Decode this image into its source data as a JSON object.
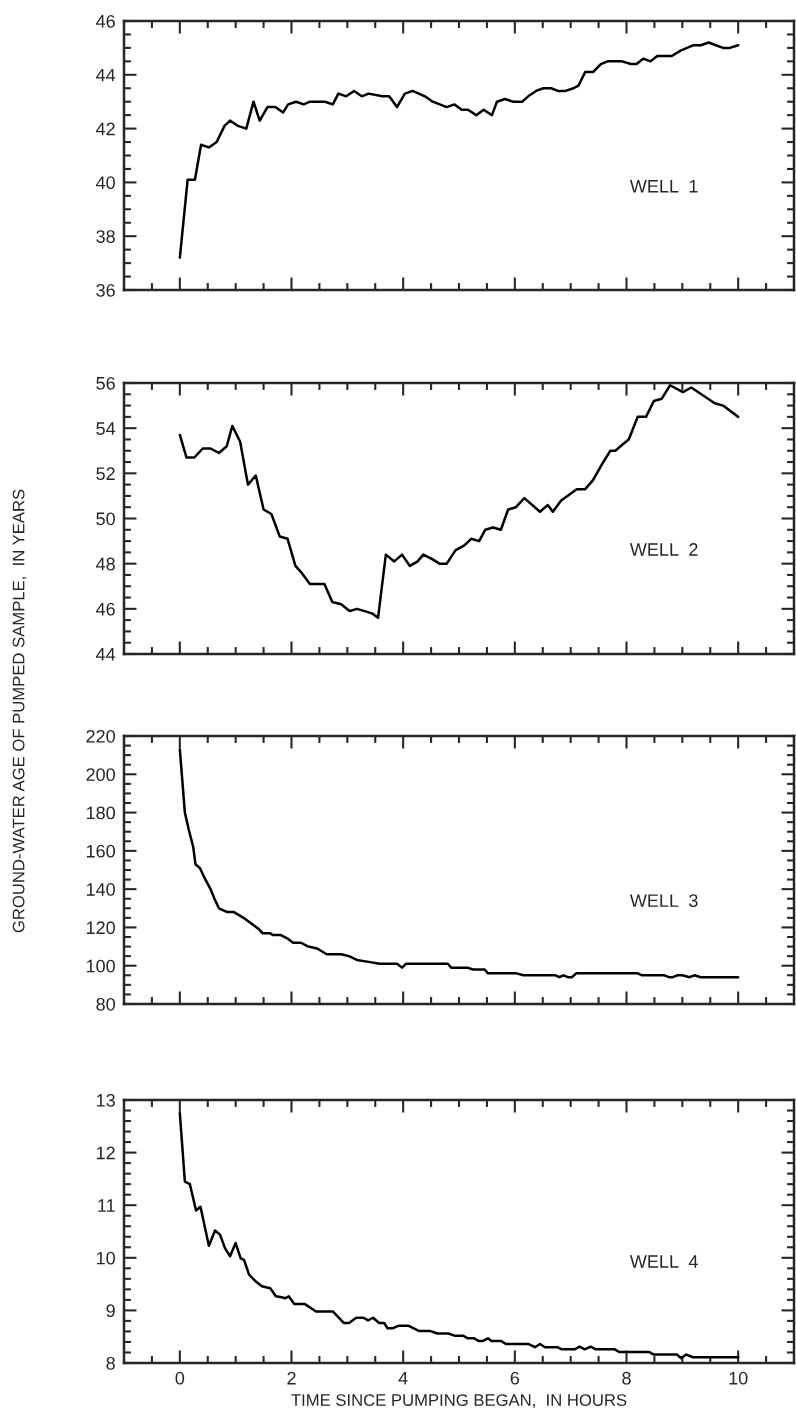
{
  "chart_data": [
    {
      "type": "line",
      "tick_labels": "y",
      "annotations": [
        "WELL  1"
      ],
      "x": [
        0,
        0.14,
        0.27,
        0.38,
        0.52,
        0.66,
        0.8,
        0.9,
        1.04,
        1.19,
        1.32,
        1.43,
        1.57,
        1.71,
        1.85,
        1.94,
        2.08,
        2.22,
        2.33,
        2.6,
        2.74,
        2.84,
        2.98,
        3.12,
        3.26,
        3.38,
        3.63,
        3.75,
        3.89,
        4.03,
        4.17,
        4.39,
        4.53,
        4.78,
        4.92,
        5.05,
        5.16,
        5.31,
        5.44,
        5.59,
        5.68,
        5.82,
        5.97,
        6.13,
        6.24,
        6.38,
        6.51,
        6.65,
        6.77,
        6.91,
        7.05,
        7.14,
        7.26,
        7.4,
        7.54,
        7.66,
        7.92,
        8.08,
        8.18,
        8.3,
        8.43,
        8.55,
        8.81,
        8.97,
        9.2,
        9.33,
        9.47,
        9.6,
        9.73,
        9.85,
        10
      ],
      "series": [
        {
          "color": "#000000",
          "values": [
            37.2,
            40.1,
            40.1,
            41.4,
            41.3,
            41.5,
            42.1,
            42.3,
            42.1,
            42.0,
            43.0,
            42.3,
            42.8,
            42.8,
            42.6,
            42.9,
            43.0,
            42.9,
            43.0,
            43.0,
            42.9,
            43.3,
            43.2,
            43.4,
            43.2,
            43.3,
            43.2,
            43.2,
            42.8,
            43.3,
            43.4,
            43.2,
            43.0,
            42.8,
            42.9,
            42.7,
            42.7,
            42.5,
            42.7,
            42.5,
            43.0,
            43.1,
            43.0,
            43.0,
            43.2,
            43.4,
            43.5,
            43.5,
            43.4,
            43.4,
            43.5,
            43.6,
            44.1,
            44.1,
            44.4,
            44.5,
            44.5,
            44.4,
            44.4,
            44.6,
            44.5,
            44.7,
            44.7,
            44.9,
            45.1,
            45.1,
            45.2,
            45.1,
            45.0,
            45.0,
            45.1
          ]
        }
      ],
      "xlim": [
        -1,
        11
      ],
      "ylim": [
        36,
        46
      ],
      "xticks": [
        0,
        2,
        4,
        6,
        8,
        10,
        {
          "value": -0.5,
          "label": null
        },
        {
          "value": 0.5,
          "label": null
        },
        {
          "value": 1,
          "label": null
        },
        {
          "value": 1.5,
          "label": null
        },
        {
          "value": 2.5,
          "label": null
        },
        {
          "value": 3,
          "label": null
        },
        {
          "value": 3.5,
          "label": null
        },
        {
          "value": 4.5,
          "label": null
        },
        {
          "value": 5,
          "label": null
        },
        {
          "value": 5.5,
          "label": null
        },
        {
          "value": 6.5,
          "label": null
        },
        {
          "value": 7,
          "label": null
        },
        {
          "value": 7.5,
          "label": null
        },
        {
          "value": 8.5,
          "label": null
        },
        {
          "value": 9,
          "label": null
        },
        {
          "value": 9.5,
          "label": null
        },
        {
          "value": 10.5,
          "label": null
        }
      ],
      "yticks": [
        36,
        38,
        40,
        42,
        44,
        46,
        {
          "value": 36.5,
          "label": null
        },
        {
          "value": 37,
          "label": null
        },
        {
          "value": 37.5,
          "label": null
        },
        {
          "value": 38.5,
          "label": null
        },
        {
          "value": 39,
          "label": null
        },
        {
          "value": 39.5,
          "label": null
        },
        {
          "value": 40.5,
          "label": null
        },
        {
          "value": 41,
          "label": null
        },
        {
          "value": 41.5,
          "label": null
        },
        {
          "value": 42.5,
          "label": null
        },
        {
          "value": 43,
          "label": null
        },
        {
          "value": 43.5,
          "label": null
        },
        {
          "value": 44.5,
          "label": null
        },
        {
          "value": 45,
          "label": null
        },
        {
          "value": 45.5,
          "label": null
        }
      ]
    },
    {
      "type": "line",
      "tick_labels": "y",
      "annotations": [
        "WELL  2"
      ],
      "ylabel": "GROUND-WATER AGE OF PUMPED SAMPLE,  IN YEARS",
      "x": [
        0,
        0.12,
        0.26,
        0.41,
        0.55,
        0.7,
        0.84,
        0.94,
        1.08,
        1.22,
        1.36,
        1.5,
        1.64,
        1.79,
        1.93,
        2.07,
        2.18,
        2.33,
        2.59,
        2.73,
        2.89,
        3.04,
        3.17,
        3.31,
        3.44,
        3.55,
        3.69,
        3.84,
        3.98,
        4.12,
        4.26,
        4.36,
        4.52,
        4.65,
        4.78,
        4.94,
        5.09,
        5.22,
        5.36,
        5.47,
        5.61,
        5.75,
        5.88,
        6.02,
        6.17,
        6.45,
        6.59,
        6.68,
        6.83,
        7.11,
        7.26,
        7.4,
        7.56,
        7.71,
        7.8,
        7.94,
        8.04,
        8.2,
        8.35,
        8.49,
        8.63,
        8.78,
        9.01,
        9.16,
        9.58,
        9.73,
        10
      ],
      "series": [
        {
          "color": "#000000",
          "values": [
            53.7,
            52.7,
            52.7,
            53.1,
            53.1,
            52.9,
            53.2,
            54.1,
            53.4,
            51.5,
            51.9,
            50.4,
            50.2,
            49.2,
            49.1,
            47.9,
            47.6,
            47.1,
            47.1,
            46.3,
            46.2,
            45.9,
            46.0,
            45.9,
            45.8,
            45.6,
            48.4,
            48.1,
            48.4,
            47.9,
            48.1,
            48.4,
            48.2,
            48.0,
            48.0,
            48.6,
            48.8,
            49.1,
            49.0,
            49.5,
            49.6,
            49.5,
            50.4,
            50.5,
            50.9,
            50.3,
            50.6,
            50.3,
            50.8,
            51.3,
            51.3,
            51.7,
            52.4,
            53.0,
            53.0,
            53.3,
            53.5,
            54.5,
            54.5,
            55.2,
            55.3,
            55.9,
            55.6,
            55.8,
            55.1,
            55.0,
            54.5
          ]
        }
      ],
      "xlim": [
        -1,
        11
      ],
      "ylim": [
        44,
        56
      ],
      "xticks": [
        0,
        2,
        4,
        6,
        8,
        10,
        {
          "value": -0.5,
          "label": null
        },
        {
          "value": 0.5,
          "label": null
        },
        {
          "value": 1,
          "label": null
        },
        {
          "value": 1.5,
          "label": null
        },
        {
          "value": 2.5,
          "label": null
        },
        {
          "value": 3,
          "label": null
        },
        {
          "value": 3.5,
          "label": null
        },
        {
          "value": 4.5,
          "label": null
        },
        {
          "value": 5,
          "label": null
        },
        {
          "value": 5.5,
          "label": null
        },
        {
          "value": 6.5,
          "label": null
        },
        {
          "value": 7,
          "label": null
        },
        {
          "value": 7.5,
          "label": null
        },
        {
          "value": 8.5,
          "label": null
        },
        {
          "value": 9,
          "label": null
        },
        {
          "value": 9.5,
          "label": null
        },
        {
          "value": 10.5,
          "label": null
        }
      ],
      "yticks": [
        44,
        46,
        48,
        50,
        52,
        54,
        56,
        {
          "value": 44.5,
          "label": null
        },
        {
          "value": 45,
          "label": null
        },
        {
          "value": 45.5,
          "label": null
        },
        {
          "value": 46.5,
          "label": null
        },
        {
          "value": 47,
          "label": null
        },
        {
          "value": 47.5,
          "label": null
        },
        {
          "value": 48.5,
          "label": null
        },
        {
          "value": 49,
          "label": null
        },
        {
          "value": 49.5,
          "label": null
        },
        {
          "value": 50.5,
          "label": null
        },
        {
          "value": 51,
          "label": null
        },
        {
          "value": 51.5,
          "label": null
        },
        {
          "value": 52.5,
          "label": null
        },
        {
          "value": 53,
          "label": null
        },
        {
          "value": 53.5,
          "label": null
        },
        {
          "value": 54.5,
          "label": null
        },
        {
          "value": 55,
          "label": null
        },
        {
          "value": 55.5,
          "label": null
        }
      ]
    },
    {
      "type": "line",
      "tick_labels": "y",
      "annotations": [
        "WELL  3"
      ],
      "x": [
        0,
        0.09,
        0.16,
        0.24,
        0.28,
        0.36,
        0.44,
        0.55,
        0.62,
        0.7,
        0.85,
        0.97,
        1.14,
        1.28,
        1.42,
        1.48,
        1.61,
        1.67,
        1.81,
        1.94,
        2.03,
        2.17,
        2.3,
        2.46,
        2.63,
        2.89,
        3.03,
        3.17,
        3.38,
        3.58,
        3.89,
        3.98,
        4.05,
        4.8,
        4.86,
        5.15,
        5.25,
        5.46,
        5.52,
        6.03,
        6.15,
        6.73,
        6.8,
        6.87,
        6.95,
        7.02,
        7.1,
        8.2,
        8.28,
        8.68,
        8.76,
        8.83,
        8.91,
        9.0,
        9.13,
        9.22,
        9.33,
        10
      ],
      "series": [
        {
          "color": "#000000",
          "values": [
            213,
            180,
            171,
            162,
            153,
            151,
            146,
            140,
            135,
            130,
            128,
            128,
            125,
            122,
            119,
            117,
            117,
            116,
            116,
            114,
            112,
            112,
            110,
            109,
            106,
            106,
            105,
            103,
            102,
            101,
            101,
            99,
            101,
            101,
            99,
            99,
            98,
            98,
            96,
            96,
            95,
            95,
            94,
            95,
            94,
            94,
            96,
            96,
            95,
            95,
            94,
            94,
            95,
            95,
            94,
            95,
            94,
            94
          ]
        }
      ],
      "xlim": [
        -1,
        11
      ],
      "ylim": [
        80,
        220
      ],
      "xticks": [
        0,
        2,
        4,
        6,
        8,
        10,
        {
          "value": -0.5,
          "label": null
        },
        {
          "value": 0.5,
          "label": null
        },
        {
          "value": 1,
          "label": null
        },
        {
          "value": 1.5,
          "label": null
        },
        {
          "value": 2.5,
          "label": null
        },
        {
          "value": 3,
          "label": null
        },
        {
          "value": 3.5,
          "label": null
        },
        {
          "value": 4.5,
          "label": null
        },
        {
          "value": 5,
          "label": null
        },
        {
          "value": 5.5,
          "label": null
        },
        {
          "value": 6.5,
          "label": null
        },
        {
          "value": 7,
          "label": null
        },
        {
          "value": 7.5,
          "label": null
        },
        {
          "value": 8.5,
          "label": null
        },
        {
          "value": 9,
          "label": null
        },
        {
          "value": 9.5,
          "label": null
        },
        {
          "value": 10.5,
          "label": null
        }
      ],
      "yticks": [
        80,
        100,
        120,
        140,
        160,
        180,
        200,
        220,
        {
          "value": 85,
          "label": null
        },
        {
          "value": 90,
          "label": null
        },
        {
          "value": 95,
          "label": null
        },
        {
          "value": 105,
          "label": null
        },
        {
          "value": 110,
          "label": null
        },
        {
          "value": 115,
          "label": null
        },
        {
          "value": 125,
          "label": null
        },
        {
          "value": 130,
          "label": null
        },
        {
          "value": 135,
          "label": null
        },
        {
          "value": 145,
          "label": null
        },
        {
          "value": 150,
          "label": null
        },
        {
          "value": 155,
          "label": null
        },
        {
          "value": 165,
          "label": null
        },
        {
          "value": 170,
          "label": null
        },
        {
          "value": 175,
          "label": null
        },
        {
          "value": 185,
          "label": null
        },
        {
          "value": 190,
          "label": null
        },
        {
          "value": 195,
          "label": null
        },
        {
          "value": 205,
          "label": null
        },
        {
          "value": 210,
          "label": null
        },
        {
          "value": 215,
          "label": null
        }
      ]
    },
    {
      "type": "line",
      "annotations": [
        "WELL  4"
      ],
      "xlabel": "TIME SINCE PUMPING BEGAN,  IN HOURS",
      "x": [
        0,
        0.09,
        0.18,
        0.29,
        0.37,
        0.52,
        0.63,
        0.72,
        0.81,
        0.9,
        1.0,
        1.09,
        1.15,
        1.24,
        1.35,
        1.47,
        1.62,
        1.72,
        1.82,
        1.89,
        1.95,
        2.05,
        2.24,
        2.44,
        2.74,
        2.94,
        3.03,
        3.16,
        3.29,
        3.37,
        3.46,
        3.57,
        3.66,
        3.72,
        3.81,
        3.92,
        4.09,
        4.28,
        4.48,
        4.61,
        4.81,
        4.92,
        5.07,
        5.16,
        5.27,
        5.35,
        5.43,
        5.52,
        5.58,
        5.75,
        5.84,
        6.25,
        6.36,
        6.45,
        6.54,
        6.76,
        6.84,
        7.07,
        7.16,
        7.25,
        7.36,
        7.45,
        7.79,
        7.87,
        8.4,
        8.49,
        8.9,
        8.98,
        9.07,
        9.19,
        10
      ],
      "series": [
        {
          "color": "#000000",
          "values": [
            12.75,
            11.45,
            11.4,
            10.9,
            10.97,
            10.23,
            10.52,
            10.44,
            10.18,
            10.03,
            10.28,
            9.99,
            9.96,
            9.68,
            9.56,
            9.46,
            9.42,
            9.27,
            9.25,
            9.23,
            9.27,
            9.12,
            9.12,
            8.98,
            8.98,
            8.76,
            8.76,
            8.86,
            8.86,
            8.81,
            8.86,
            8.76,
            8.76,
            8.66,
            8.66,
            8.71,
            8.71,
            8.61,
            8.61,
            8.56,
            8.56,
            8.52,
            8.52,
            8.47,
            8.47,
            8.42,
            8.42,
            8.47,
            8.42,
            8.42,
            8.36,
            8.36,
            8.3,
            8.36,
            8.3,
            8.3,
            8.26,
            8.26,
            8.31,
            8.26,
            8.31,
            8.26,
            8.26,
            8.21,
            8.21,
            8.16,
            8.16,
            8.09,
            8.16,
            8.11,
            8.11
          ]
        }
      ],
      "xlim": [
        -1,
        11
      ],
      "ylim": [
        8,
        13
      ],
      "xticks": [
        0,
        2,
        4,
        6,
        8,
        10,
        {
          "value": -0.5,
          "label": null
        },
        {
          "value": 0.5,
          "label": null
        },
        {
          "value": 1,
          "label": null
        },
        {
          "value": 1.5,
          "label": null
        },
        {
          "value": 2.5,
          "label": null
        },
        {
          "value": 3,
          "label": null
        },
        {
          "value": 3.5,
          "label": null
        },
        {
          "value": 4.5,
          "label": null
        },
        {
          "value": 5,
          "label": null
        },
        {
          "value": 5.5,
          "label": null
        },
        {
          "value": 6.5,
          "label": null
        },
        {
          "value": 7,
          "label": null
        },
        {
          "value": 7.5,
          "label": null
        },
        {
          "value": 8.5,
          "label": null
        },
        {
          "value": 9,
          "label": null
        },
        {
          "value": 9.5,
          "label": null
        },
        {
          "value": 10.5,
          "label": null
        }
      ],
      "yticks": [
        8,
        9,
        10,
        11,
        12,
        13,
        {
          "value": 8.2,
          "label": null
        },
        {
          "value": 8.4,
          "label": null
        },
        {
          "value": 8.6,
          "label": null
        },
        {
          "value": 8.8,
          "label": null
        },
        {
          "value": 9.2,
          "label": null
        },
        {
          "value": 9.4,
          "label": null
        },
        {
          "value": 9.6,
          "label": null
        },
        {
          "value": 9.8,
          "label": null
        },
        {
          "value": 10.2,
          "label": null
        },
        {
          "value": 10.4,
          "label": null
        },
        {
          "value": 10.6,
          "label": null
        },
        {
          "value": 10.8,
          "label": null
        },
        {
          "value": 11.2,
          "label": null
        },
        {
          "value": 11.4,
          "label": null
        },
        {
          "value": 11.6,
          "label": null
        },
        {
          "value": 11.8,
          "label": null
        },
        {
          "value": 12.2,
          "label": null
        },
        {
          "value": 12.4,
          "label": null
        },
        {
          "value": 12.6,
          "label": null
        },
        {
          "value": 12.8,
          "label": null
        }
      ]
    }
  ]
}
